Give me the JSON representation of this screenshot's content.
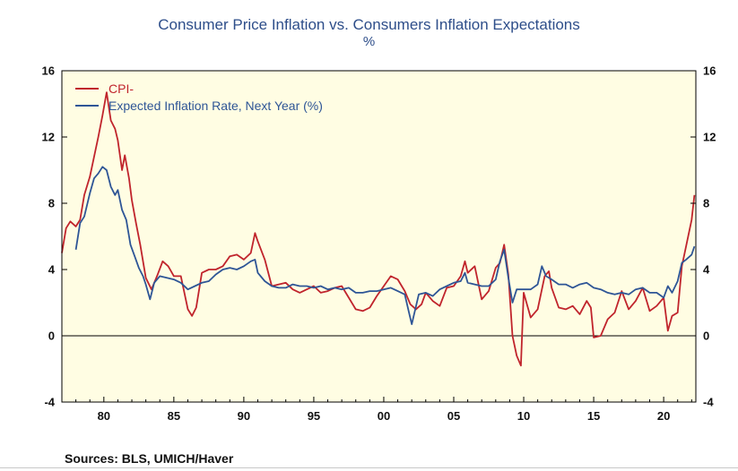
{
  "title": "Consumer Price Inflation vs. Consumers Inflation Expectations",
  "subtitle": "%",
  "source": "Sources:  BLS, UMICH/Haver",
  "colors": {
    "cpi": "#c0242c",
    "expected": "#2e5596",
    "plot_bg": "#fffde3",
    "title": "#2e4e8a"
  },
  "chart_data": {
    "type": "line",
    "title": "Consumer Price Inflation vs. Consumers Inflation Expectations",
    "subtitle": "%",
    "xlabel": "",
    "ylabel": "",
    "xlim": [
      1977.0,
      2022.3
    ],
    "ylim": [
      -4,
      16
    ],
    "y_ticks": [
      -4,
      0,
      4,
      8,
      12,
      16
    ],
    "y_ticks_right": [
      -4,
      0,
      4,
      8,
      12,
      16
    ],
    "x_tick_labels": [
      {
        "x": 1980,
        "label": "80"
      },
      {
        "x": 1985,
        "label": "85"
      },
      {
        "x": 1990,
        "label": "90"
      },
      {
        "x": 1995,
        "label": "95"
      },
      {
        "x": 2000,
        "label": "00"
      },
      {
        "x": 2005,
        "label": "05"
      },
      {
        "x": 2010,
        "label": "10"
      },
      {
        "x": 2015,
        "label": "15"
      },
      {
        "x": 2020,
        "label": "20"
      }
    ],
    "zero_line": true,
    "grid": false,
    "legend_position": "top-left",
    "series": [
      {
        "name": "CPI-",
        "color": "#c0242c",
        "x": [
          1977.0,
          1977.3,
          1977.6,
          1978.0,
          1978.3,
          1978.6,
          1979.0,
          1979.3,
          1979.6,
          1979.9,
          1980.2,
          1980.5,
          1980.8,
          1981.0,
          1981.3,
          1981.5,
          1981.8,
          1982.0,
          1982.3,
          1982.6,
          1983.0,
          1983.4,
          1983.8,
          1984.2,
          1984.6,
          1985.0,
          1985.5,
          1986.0,
          1986.3,
          1986.6,
          1987.0,
          1987.5,
          1988.0,
          1988.5,
          1989.0,
          1989.5,
          1990.0,
          1990.5,
          1990.8,
          1991.0,
          1991.5,
          1992.0,
          1992.5,
          1993.0,
          1993.5,
          1994.0,
          1994.5,
          1995.0,
          1995.5,
          1996.0,
          1996.5,
          1997.0,
          1997.5,
          1998.0,
          1998.5,
          1999.0,
          1999.5,
          2000.0,
          2000.5,
          2001.0,
          2001.5,
          2001.9,
          2002.3,
          2002.7,
          2003.0,
          2003.5,
          2004.0,
          2004.5,
          2005.0,
          2005.5,
          2005.8,
          2006.0,
          2006.5,
          2007.0,
          2007.5,
          2008.0,
          2008.3,
          2008.6,
          2008.9,
          2009.2,
          2009.5,
          2009.8,
          2010.0,
          2010.5,
          2011.0,
          2011.5,
          2011.8,
          2012.0,
          2012.5,
          2013.0,
          2013.5,
          2014.0,
          2014.5,
          2014.8,
          2015.0,
          2015.5,
          2016.0,
          2016.5,
          2017.0,
          2017.5,
          2018.0,
          2018.5,
          2019.0,
          2019.5,
          2020.0,
          2020.3,
          2020.6,
          2021.0,
          2021.3,
          2021.6,
          2022.0,
          2022.2
        ],
        "values": [
          5.0,
          6.5,
          6.9,
          6.6,
          7.0,
          8.5,
          9.6,
          10.8,
          12.0,
          13.3,
          14.7,
          13.0,
          12.5,
          11.8,
          10.0,
          10.9,
          9.5,
          8.2,
          6.8,
          5.5,
          3.5,
          2.8,
          3.6,
          4.5,
          4.2,
          3.6,
          3.6,
          1.6,
          1.2,
          1.7,
          3.8,
          4.0,
          4.0,
          4.2,
          4.8,
          4.9,
          4.6,
          5.0,
          6.2,
          5.7,
          4.6,
          3.0,
          3.1,
          3.2,
          2.8,
          2.6,
          2.8,
          3.0,
          2.6,
          2.7,
          2.9,
          3.0,
          2.3,
          1.6,
          1.5,
          1.7,
          2.4,
          3.0,
          3.6,
          3.4,
          2.7,
          1.9,
          1.6,
          1.9,
          2.6,
          2.1,
          1.8,
          2.9,
          3.0,
          3.6,
          4.5,
          3.8,
          4.2,
          2.2,
          2.7,
          4.1,
          4.4,
          5.5,
          3.7,
          0.0,
          -1.2,
          -1.8,
          2.6,
          1.1,
          1.6,
          3.6,
          3.9,
          2.9,
          1.7,
          1.6,
          1.8,
          1.3,
          2.1,
          1.7,
          -0.1,
          0.0,
          1.0,
          1.4,
          2.7,
          1.6,
          2.1,
          2.9,
          1.5,
          1.8,
          2.3,
          0.3,
          1.2,
          1.4,
          4.2,
          5.4,
          7.0,
          8.5
        ]
      },
      {
        "name": "Expected Inflation Rate, Next Year (%)",
        "color": "#2e5596",
        "x": [
          1978.0,
          1978.3,
          1978.6,
          1979.0,
          1979.3,
          1979.6,
          1979.9,
          1980.2,
          1980.5,
          1980.8,
          1981.0,
          1981.3,
          1981.6,
          1981.9,
          1982.2,
          1982.5,
          1982.8,
          1983.0,
          1983.3,
          1983.6,
          1984.0,
          1984.5,
          1985.0,
          1985.5,
          1986.0,
          1986.5,
          1987.0,
          1987.5,
          1988.0,
          1988.5,
          1989.0,
          1989.5,
          1990.0,
          1990.5,
          1990.8,
          1991.0,
          1991.5,
          1992.0,
          1992.5,
          1993.0,
          1993.5,
          1994.0,
          1994.5,
          1995.0,
          1995.5,
          1996.0,
          1996.5,
          1997.0,
          1997.5,
          1998.0,
          1998.5,
          1999.0,
          1999.5,
          2000.0,
          2000.5,
          2001.0,
          2001.5,
          2001.8,
          2002.0,
          2002.5,
          2003.0,
          2003.5,
          2004.0,
          2004.5,
          2005.0,
          2005.5,
          2005.8,
          2006.0,
          2006.5,
          2007.0,
          2007.5,
          2008.0,
          2008.3,
          2008.6,
          2008.9,
          2009.2,
          2009.5,
          2010.0,
          2010.5,
          2011.0,
          2011.3,
          2011.6,
          2012.0,
          2012.5,
          2013.0,
          2013.5,
          2014.0,
          2014.5,
          2015.0,
          2015.5,
          2016.0,
          2016.5,
          2017.0,
          2017.5,
          2018.0,
          2018.5,
          2019.0,
          2019.5,
          2020.0,
          2020.3,
          2020.6,
          2021.0,
          2021.3,
          2021.6,
          2022.0,
          2022.2
        ],
        "values": [
          5.2,
          6.8,
          7.2,
          8.6,
          9.5,
          9.8,
          10.2,
          10.0,
          9.0,
          8.5,
          8.8,
          7.6,
          7.0,
          5.5,
          4.8,
          4.1,
          3.6,
          3.1,
          2.2,
          3.2,
          3.6,
          3.5,
          3.4,
          3.2,
          2.8,
          3.0,
          3.2,
          3.3,
          3.7,
          4.0,
          4.1,
          4.0,
          4.2,
          4.5,
          4.6,
          3.8,
          3.3,
          3.0,
          2.9,
          2.9,
          3.1,
          3.0,
          3.0,
          2.9,
          3.0,
          2.8,
          2.9,
          2.8,
          2.9,
          2.6,
          2.6,
          2.7,
          2.7,
          2.8,
          2.9,
          2.7,
          2.5,
          1.4,
          0.7,
          2.5,
          2.6,
          2.4,
          2.8,
          3.0,
          3.2,
          3.3,
          3.8,
          3.2,
          3.1,
          3.0,
          3.0,
          3.4,
          4.5,
          5.2,
          3.5,
          2.0,
          2.8,
          2.8,
          2.8,
          3.1,
          4.2,
          3.6,
          3.4,
          3.1,
          3.1,
          2.9,
          3.1,
          3.2,
          2.9,
          2.8,
          2.6,
          2.5,
          2.6,
          2.5,
          2.8,
          2.9,
          2.6,
          2.6,
          2.3,
          3.0,
          2.6,
          3.3,
          4.4,
          4.6,
          4.9,
          5.4
        ]
      }
    ]
  }
}
